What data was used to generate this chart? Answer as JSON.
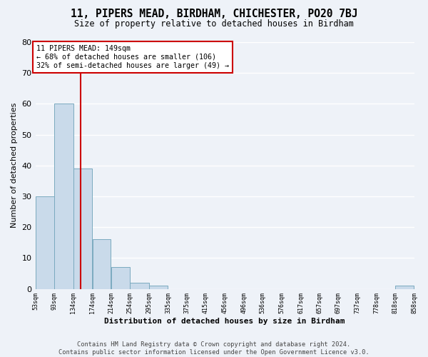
{
  "title": "11, PIPERS MEAD, BIRDHAM, CHICHESTER, PO20 7BJ",
  "subtitle": "Size of property relative to detached houses in Birdham",
  "xlabel": "Distribution of detached houses by size in Birdham",
  "ylabel": "Number of detached properties",
  "bin_edges": [
    53,
    93,
    134,
    174,
    214,
    254,
    295,
    335,
    375,
    415,
    456,
    496,
    536,
    576,
    617,
    657,
    697,
    737,
    778,
    818,
    858
  ],
  "counts": [
    30,
    60,
    39,
    16,
    7,
    2,
    1,
    0,
    0,
    0,
    0,
    0,
    0,
    0,
    0,
    0,
    0,
    0,
    0,
    1
  ],
  "bar_color": "#c9daea",
  "bar_edge_color": "#7aaabf",
  "property_value": 149,
  "vline_color": "#cc0000",
  "annotation_text": "11 PIPERS MEAD: 149sqm\n← 68% of detached houses are smaller (106)\n32% of semi-detached houses are larger (49) →",
  "annotation_box_color": "#ffffff",
  "annotation_box_edge": "#cc0000",
  "ylim": [
    0,
    80
  ],
  "yticks": [
    0,
    10,
    20,
    30,
    40,
    50,
    60,
    70,
    80
  ],
  "footer": "Contains HM Land Registry data © Crown copyright and database right 2024.\nContains public sector information licensed under the Open Government Licence v3.0.",
  "bg_color": "#eef2f8",
  "grid_color": "#ffffff"
}
